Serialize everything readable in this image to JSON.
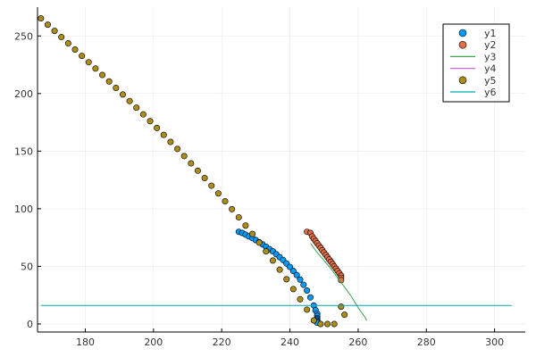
{
  "chart_data": {
    "type": "scatter",
    "xlim": [
      166,
      309
    ],
    "ylim": [
      -7,
      275
    ],
    "xticks": [
      180,
      200,
      220,
      240,
      260,
      280,
      300
    ],
    "yticks": [
      0,
      50,
      100,
      150,
      200,
      250
    ],
    "grid": true,
    "legend_position": "top-right",
    "series": [
      {
        "name": "y1",
        "kind": "scatter",
        "color": "#009AFA",
        "x": [
          225,
          226,
          227,
          228,
          229,
          230,
          231,
          232,
          233,
          234,
          235,
          236,
          237,
          238,
          239,
          240,
          241,
          242,
          243,
          244,
          245,
          246,
          247,
          247.5,
          248,
          248,
          248,
          248,
          248,
          248,
          248
        ],
        "y": [
          80,
          79,
          77.5,
          76,
          74.5,
          72.8,
          71,
          69,
          67,
          65,
          63,
          60.5,
          58,
          55.5,
          52.5,
          49.5,
          46,
          42.5,
          38.5,
          34,
          29,
          23,
          16,
          12,
          9,
          7,
          5,
          4,
          3,
          2,
          1
        ]
      },
      {
        "name": "y2",
        "kind": "scatter",
        "color": "#E36F47",
        "x": [
          245,
          246,
          246.5,
          247,
          247.5,
          248,
          248.5,
          249,
          249.5,
          250,
          250.5,
          251,
          251.5,
          252,
          252.5,
          253,
          253.5,
          254,
          254.5,
          255,
          255,
          255
        ],
        "y": [
          80,
          79,
          76,
          74,
          72,
          70,
          68,
          66,
          64,
          62,
          60,
          58,
          56,
          54,
          52,
          50,
          48,
          46,
          44,
          42,
          40,
          38
        ]
      },
      {
        "name": "y3",
        "kind": "line",
        "color": "#3EA44E",
        "x": [
          246,
          248,
          250,
          252,
          254,
          256,
          257,
          258,
          259,
          260,
          261,
          262,
          262.5
        ],
        "y": [
          70,
          62,
          55,
          48,
          40,
          32,
          28,
          24,
          19,
          14,
          10,
          6,
          3
        ]
      },
      {
        "name": "y4",
        "kind": "line",
        "color": "#C371D2",
        "x": [],
        "y": []
      },
      {
        "name": "y5",
        "kind": "scatter",
        "color": "#AC8D18",
        "x": [
          167,
          169,
          171,
          173,
          175,
          177,
          179,
          181,
          183,
          185,
          187,
          189,
          191,
          193,
          195,
          197,
          199,
          201,
          203,
          205,
          207,
          209,
          211,
          213,
          215,
          217,
          219,
          221,
          223,
          225,
          227,
          229,
          231,
          233,
          235,
          237,
          239,
          241,
          243,
          245,
          247,
          249,
          251,
          253,
          255,
          256
        ],
        "y": [
          265.2,
          259.8,
          254.4,
          249,
          243.6,
          238.2,
          232.7,
          227.2,
          221.7,
          216.1,
          210.5,
          204.9,
          199.2,
          193.5,
          187.7,
          181.9,
          176,
          170.1,
          164.1,
          158,
          151.9,
          145.7,
          139.4,
          133,
          126.6,
          120,
          113.3,
          106.5,
          99.6,
          92.6,
          85.4,
          78.1,
          70.6,
          63,
          55.1,
          47.1,
          38.8,
          30.3,
          21.5,
          12.4,
          3.1,
          0,
          0,
          0,
          15,
          8
        ]
      },
      {
        "name": "y6",
        "kind": "line",
        "color": "#00A9AD",
        "x": [
          167,
          305
        ],
        "y": [
          16,
          16
        ]
      }
    ]
  }
}
